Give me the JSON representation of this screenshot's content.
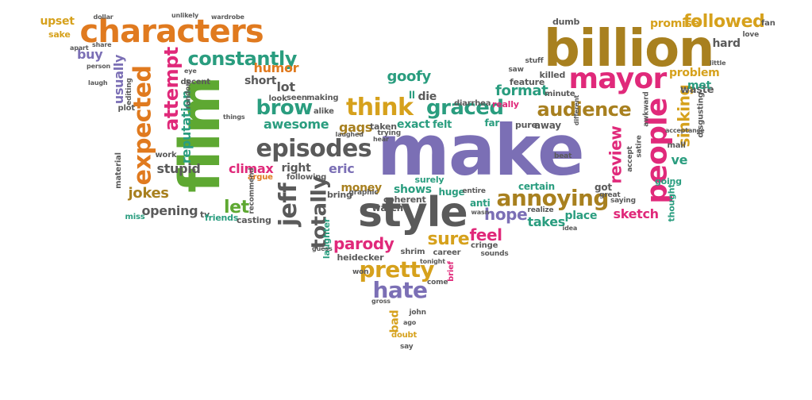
{
  "palette": {
    "orange": "#e07a1f",
    "brown": "#a8801f",
    "green": "#5ea832",
    "purple": "#7b6fb5",
    "magenta": "#e0297a",
    "teal": "#2a9d7f",
    "gray": "#5a5a5a",
    "gold": "#d6a11c"
  },
  "words": [
    {
      "text": "make",
      "color": "purple"
    },
    {
      "text": "film",
      "color": "green"
    },
    {
      "text": "billion",
      "color": "brown"
    },
    {
      "text": "characters",
      "color": "orange"
    },
    {
      "text": "style",
      "color": "gray"
    },
    {
      "text": "mayor",
      "color": "magenta"
    },
    {
      "text": "people",
      "color": "magenta"
    },
    {
      "text": "episodes",
      "color": "gray"
    },
    {
      "text": "expected",
      "color": "orange"
    },
    {
      "text": "attempt",
      "color": "magenta"
    },
    {
      "text": "audience",
      "color": "brown"
    },
    {
      "text": "think",
      "color": "gold"
    },
    {
      "text": "annoying",
      "color": "brown"
    },
    {
      "text": "jeff",
      "color": "gray"
    },
    {
      "text": "totally",
      "color": "gray"
    },
    {
      "text": "pretty",
      "color": "gold"
    },
    {
      "text": "hate",
      "color": "purple"
    },
    {
      "text": "brow",
      "color": "teal"
    },
    {
      "text": "graced",
      "color": "teal"
    },
    {
      "text": "constantly",
      "color": "teal"
    },
    {
      "text": "followed",
      "color": "gold"
    },
    {
      "text": "review",
      "color": "magenta"
    },
    {
      "text": "sinking",
      "color": "gold"
    },
    {
      "text": "promise",
      "color": "gold"
    },
    {
      "text": "reputation",
      "color": "teal"
    },
    {
      "text": "usually",
      "color": "purple"
    },
    {
      "text": "goofy",
      "color": "teal"
    },
    {
      "text": "format",
      "color": "teal"
    },
    {
      "text": "humor",
      "color": "orange"
    },
    {
      "text": "awesome",
      "color": "teal"
    },
    {
      "text": "climax",
      "color": "magenta"
    },
    {
      "text": "stupid",
      "color": "gray"
    },
    {
      "text": "jokes",
      "color": "brown"
    },
    {
      "text": "opening",
      "color": "gray"
    },
    {
      "text": "parody",
      "color": "magenta"
    },
    {
      "text": "sure",
      "color": "gold"
    },
    {
      "text": "feel",
      "color": "magenta"
    },
    {
      "text": "hope",
      "color": "purple"
    },
    {
      "text": "takes",
      "color": "teal"
    },
    {
      "text": "sketch",
      "color": "magenta"
    },
    {
      "text": "problem",
      "color": "gold"
    },
    {
      "text": "upset",
      "color": "gold"
    },
    {
      "text": "sake",
      "color": "gold"
    },
    {
      "text": "buy",
      "color": "purple"
    },
    {
      "text": "lot",
      "color": "gray"
    },
    {
      "text": "short",
      "color": "gray"
    },
    {
      "text": "let",
      "color": "green"
    },
    {
      "text": "eric",
      "color": "purple"
    },
    {
      "text": "right",
      "color": "gray"
    },
    {
      "text": "gags",
      "color": "brown"
    },
    {
      "text": "exact",
      "color": "teal"
    },
    {
      "text": "felt",
      "color": "teal"
    },
    {
      "text": "shows",
      "color": "teal"
    },
    {
      "text": "money",
      "color": "brown"
    },
    {
      "text": "die",
      "color": "gray"
    },
    {
      "text": "ll",
      "color": "teal"
    },
    {
      "text": "bad",
      "color": "gold"
    },
    {
      "text": "hard",
      "color": "gray"
    },
    {
      "text": "waste",
      "color": "gray"
    },
    {
      "text": "met",
      "color": "teal"
    },
    {
      "text": "place",
      "color": "teal"
    },
    {
      "text": "certain",
      "color": "teal"
    },
    {
      "text": "got",
      "color": "gray"
    },
    {
      "text": "ve",
      "color": "teal"
    },
    {
      "text": "huge",
      "color": "teal"
    },
    {
      "text": "anti",
      "color": "teal"
    },
    {
      "text": "surely",
      "color": "teal"
    },
    {
      "text": "far",
      "color": "teal"
    },
    {
      "text": "away",
      "color": "gray"
    },
    {
      "text": "pure",
      "color": "gray"
    },
    {
      "text": "feature",
      "color": "gray"
    },
    {
      "text": "killed",
      "color": "gray"
    },
    {
      "text": "dumb",
      "color": "gray"
    },
    {
      "text": "fan",
      "color": "gray"
    },
    {
      "text": "love",
      "color": "gray"
    },
    {
      "text": "really",
      "color": "magenta"
    },
    {
      "text": "watch",
      "color": "gray"
    },
    {
      "text": "laughter",
      "color": "teal"
    },
    {
      "text": "heidecker",
      "color": "gray"
    },
    {
      "text": "shrim",
      "color": "gray"
    },
    {
      "text": "career",
      "color": "gray"
    },
    {
      "text": "brief",
      "color": "magenta"
    },
    {
      "text": "cringe",
      "color": "gray"
    },
    {
      "text": "john",
      "color": "gray"
    },
    {
      "text": "doubt",
      "color": "gold"
    },
    {
      "text": "say",
      "color": "gray"
    },
    {
      "text": "tv",
      "color": "gray"
    },
    {
      "text": "friends",
      "color": "teal"
    },
    {
      "text": "casting",
      "color": "gray"
    },
    {
      "text": "miss",
      "color": "teal"
    },
    {
      "text": "going",
      "color": "teal"
    },
    {
      "text": "mall",
      "color": "gray"
    },
    {
      "text": "thought",
      "color": "teal"
    },
    {
      "text": "disgusting",
      "color": "gray"
    },
    {
      "text": "awkward",
      "color": "gray"
    },
    {
      "text": "minute",
      "color": "gray"
    },
    {
      "text": "plot",
      "color": "gray"
    },
    {
      "text": "material",
      "color": "gray"
    },
    {
      "text": "decent",
      "color": "gray"
    },
    {
      "text": "editing",
      "color": "gray"
    },
    {
      "text": "seen",
      "color": "gray"
    },
    {
      "text": "making",
      "color": "gray"
    },
    {
      "text": "look",
      "color": "gray"
    },
    {
      "text": "argue",
      "color": "orange"
    },
    {
      "text": "following",
      "color": "gray"
    },
    {
      "text": "recommend",
      "color": "gray"
    },
    {
      "text": "bring",
      "color": "gray"
    },
    {
      "text": "coherent",
      "color": "gray"
    },
    {
      "text": "graphic",
      "color": "gray"
    },
    {
      "text": "taken",
      "color": "gray"
    },
    {
      "text": "trying",
      "color": "gray"
    },
    {
      "text": "alike",
      "color": "gray"
    },
    {
      "text": "diarrhea",
      "color": "gray"
    },
    {
      "text": "random",
      "color": "gray"
    },
    {
      "text": "work",
      "color": "gray"
    },
    {
      "text": "accept",
      "color": "gray"
    },
    {
      "text": "satire",
      "color": "gray"
    },
    {
      "text": "different",
      "color": "gray"
    },
    {
      "text": "little",
      "color": "gray"
    },
    {
      "text": "acceptance",
      "color": "gray"
    },
    {
      "text": "great",
      "color": "gray"
    },
    {
      "text": "saying",
      "color": "gray"
    },
    {
      "text": "realize",
      "color": "gray"
    },
    {
      "text": "sounds",
      "color": "gray"
    },
    {
      "text": "won",
      "color": "gray"
    },
    {
      "text": "come",
      "color": "gray"
    },
    {
      "text": "things",
      "color": "gray"
    },
    {
      "text": "laughed",
      "color": "gray"
    },
    {
      "text": "hear",
      "color": "gray"
    },
    {
      "text": "entire",
      "color": "gray"
    },
    {
      "text": "wardrobe",
      "color": "gray"
    },
    {
      "text": "unlikely",
      "color": "gray"
    },
    {
      "text": "stuff",
      "color": "gray"
    },
    {
      "text": "saw",
      "color": "gray"
    },
    {
      "text": "beat",
      "color": "gray"
    },
    {
      "text": "dollar",
      "color": "gray"
    },
    {
      "text": "person",
      "color": "gray"
    },
    {
      "text": "laugh",
      "color": "gray"
    },
    {
      "text": "apart",
      "color": "gray"
    },
    {
      "text": "share",
      "color": "gray"
    },
    {
      "text": "guess",
      "color": "gray"
    },
    {
      "text": "gross",
      "color": "gray"
    },
    {
      "text": "ago",
      "color": "gray"
    },
    {
      "text": "tonight",
      "color": "gray"
    },
    {
      "text": "wasn",
      "color": "gray"
    },
    {
      "text": "eye",
      "color": "gray"
    },
    {
      "text": "idea",
      "color": "gray"
    }
  ]
}
